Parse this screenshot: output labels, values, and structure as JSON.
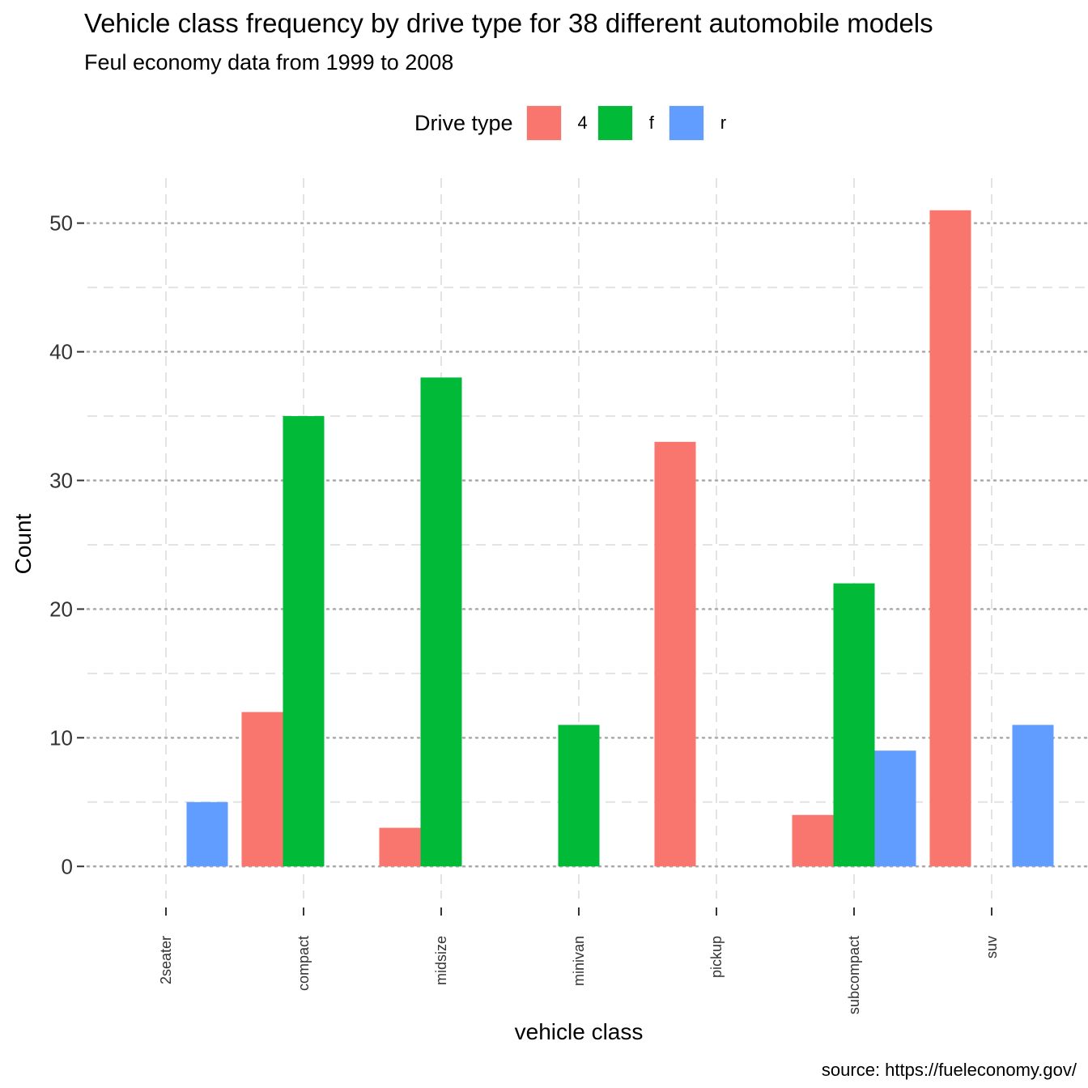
{
  "title": "Vehicle class frequency by drive type for 38 different automobile models",
  "subtitle": "Feul economy data from 1999 to 2008",
  "caption": "source: https://fueleconomy.gov/",
  "legend": {
    "title": "Drive type",
    "position": "top",
    "items": [
      {
        "label": "4",
        "color": "#F8766D"
      },
      {
        "label": "f",
        "color": "#00BA38"
      },
      {
        "label": "r",
        "color": "#619CFF"
      }
    ]
  },
  "chart_data": {
    "type": "bar",
    "bar_mode": "dodge",
    "categories": [
      "2seater",
      "compact",
      "midsize",
      "minivan",
      "pickup",
      "subcompact",
      "suv"
    ],
    "series": [
      {
        "name": "4",
        "color": "#F8766D",
        "values": [
          null,
          12,
          3,
          null,
          33,
          4,
          51
        ]
      },
      {
        "name": "f",
        "color": "#00BA38",
        "values": [
          null,
          35,
          38,
          11,
          null,
          22,
          null
        ]
      },
      {
        "name": "r",
        "color": "#619CFF",
        "values": [
          5,
          null,
          null,
          null,
          null,
          9,
          11
        ]
      }
    ],
    "xlabel": "vehicle class",
    "ylabel": "Count",
    "ylim": [
      -2.5,
      53.5
    ],
    "yticks": [
      0,
      10,
      20,
      30,
      40,
      50
    ],
    "grid": true
  }
}
